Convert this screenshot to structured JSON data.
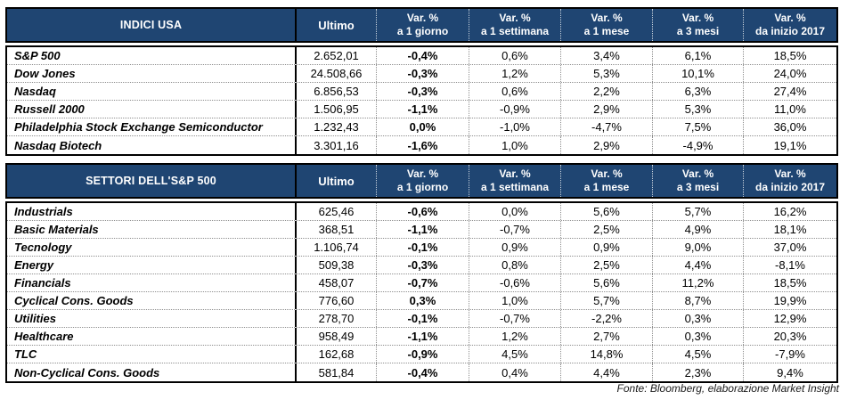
{
  "colors": {
    "header_bg": "#1F4572",
    "header_text": "#FFFFFF",
    "border": "#000000"
  },
  "columns": {
    "ultimo": "Ultimo",
    "var_top": "Var. %",
    "var_periods": [
      "a 1 giorno",
      "a 1 settimana",
      "a 1 mese",
      "a 3 mesi",
      "da inizio 2017"
    ]
  },
  "tables": [
    {
      "id": "indici-usa",
      "title": "INDICI USA",
      "rows": [
        {
          "name": "S&P 500",
          "ultimo": "2.652,01",
          "vars": [
            "-0,4%",
            "0,6%",
            "3,4%",
            "6,1%",
            "18,5%"
          ]
        },
        {
          "name": "Dow Jones",
          "ultimo": "24.508,66",
          "vars": [
            "-0,3%",
            "1,2%",
            "5,3%",
            "10,1%",
            "24,0%"
          ]
        },
        {
          "name": "Nasdaq",
          "ultimo": "6.856,53",
          "vars": [
            "-0,3%",
            "0,6%",
            "2,2%",
            "6,3%",
            "27,4%"
          ]
        },
        {
          "name": "Russell 2000",
          "ultimo": "1.506,95",
          "vars": [
            "-1,1%",
            "-0,9%",
            "2,9%",
            "5,3%",
            "11,0%"
          ]
        },
        {
          "name": "Philadelphia Stock Exchange Semiconductor",
          "ultimo": "1.232,43",
          "vars": [
            "0,0%",
            "-1,0%",
            "-4,7%",
            "7,5%",
            "36,0%"
          ]
        },
        {
          "name": "Nasdaq Biotech",
          "ultimo": "3.301,16",
          "vars": [
            "-1,6%",
            "1,0%",
            "2,9%",
            "-4,9%",
            "19,1%"
          ]
        }
      ]
    },
    {
      "id": "settori-sp500",
      "title": "SETTORI DELL'S&P 500",
      "rows": [
        {
          "name": "Industrials",
          "ultimo": "625,46",
          "vars": [
            "-0,6%",
            "0,0%",
            "5,6%",
            "5,7%",
            "16,2%"
          ]
        },
        {
          "name": "Basic Materials",
          "ultimo": "368,51",
          "vars": [
            "-1,1%",
            "-0,7%",
            "2,5%",
            "4,9%",
            "18,1%"
          ]
        },
        {
          "name": "Tecnology",
          "ultimo": "1.106,74",
          "vars": [
            "-0,1%",
            "0,9%",
            "0,9%",
            "9,0%",
            "37,0%"
          ]
        },
        {
          "name": "Energy",
          "ultimo": "509,38",
          "vars": [
            "-0,3%",
            "0,8%",
            "2,5%",
            "4,4%",
            "-8,1%"
          ]
        },
        {
          "name": "Financials",
          "ultimo": "458,07",
          "vars": [
            "-0,7%",
            "-0,6%",
            "5,6%",
            "11,2%",
            "18,5%"
          ]
        },
        {
          "name": "Cyclical Cons. Goods",
          "ultimo": "776,60",
          "vars": [
            "0,3%",
            "1,0%",
            "5,7%",
            "8,7%",
            "19,9%"
          ]
        },
        {
          "name": "Utilities",
          "ultimo": "278,70",
          "vars": [
            "-0,1%",
            "-0,7%",
            "-2,2%",
            "0,3%",
            "12,9%"
          ]
        },
        {
          "name": "Healthcare",
          "ultimo": "958,49",
          "vars": [
            "-1,1%",
            "1,2%",
            "2,7%",
            "0,3%",
            "20,3%"
          ]
        },
        {
          "name": "TLC",
          "ultimo": "162,68",
          "vars": [
            "-0,9%",
            "4,5%",
            "14,8%",
            "4,5%",
            "-7,9%"
          ]
        },
        {
          "name": "Non-Cyclical Cons. Goods",
          "ultimo": "581,84",
          "vars": [
            "-0,4%",
            "0,4%",
            "4,4%",
            "2,3%",
            "9,4%"
          ]
        }
      ]
    }
  ],
  "footer": {
    "source": "Fonte: Bloomberg, elaborazione Market Insight"
  }
}
